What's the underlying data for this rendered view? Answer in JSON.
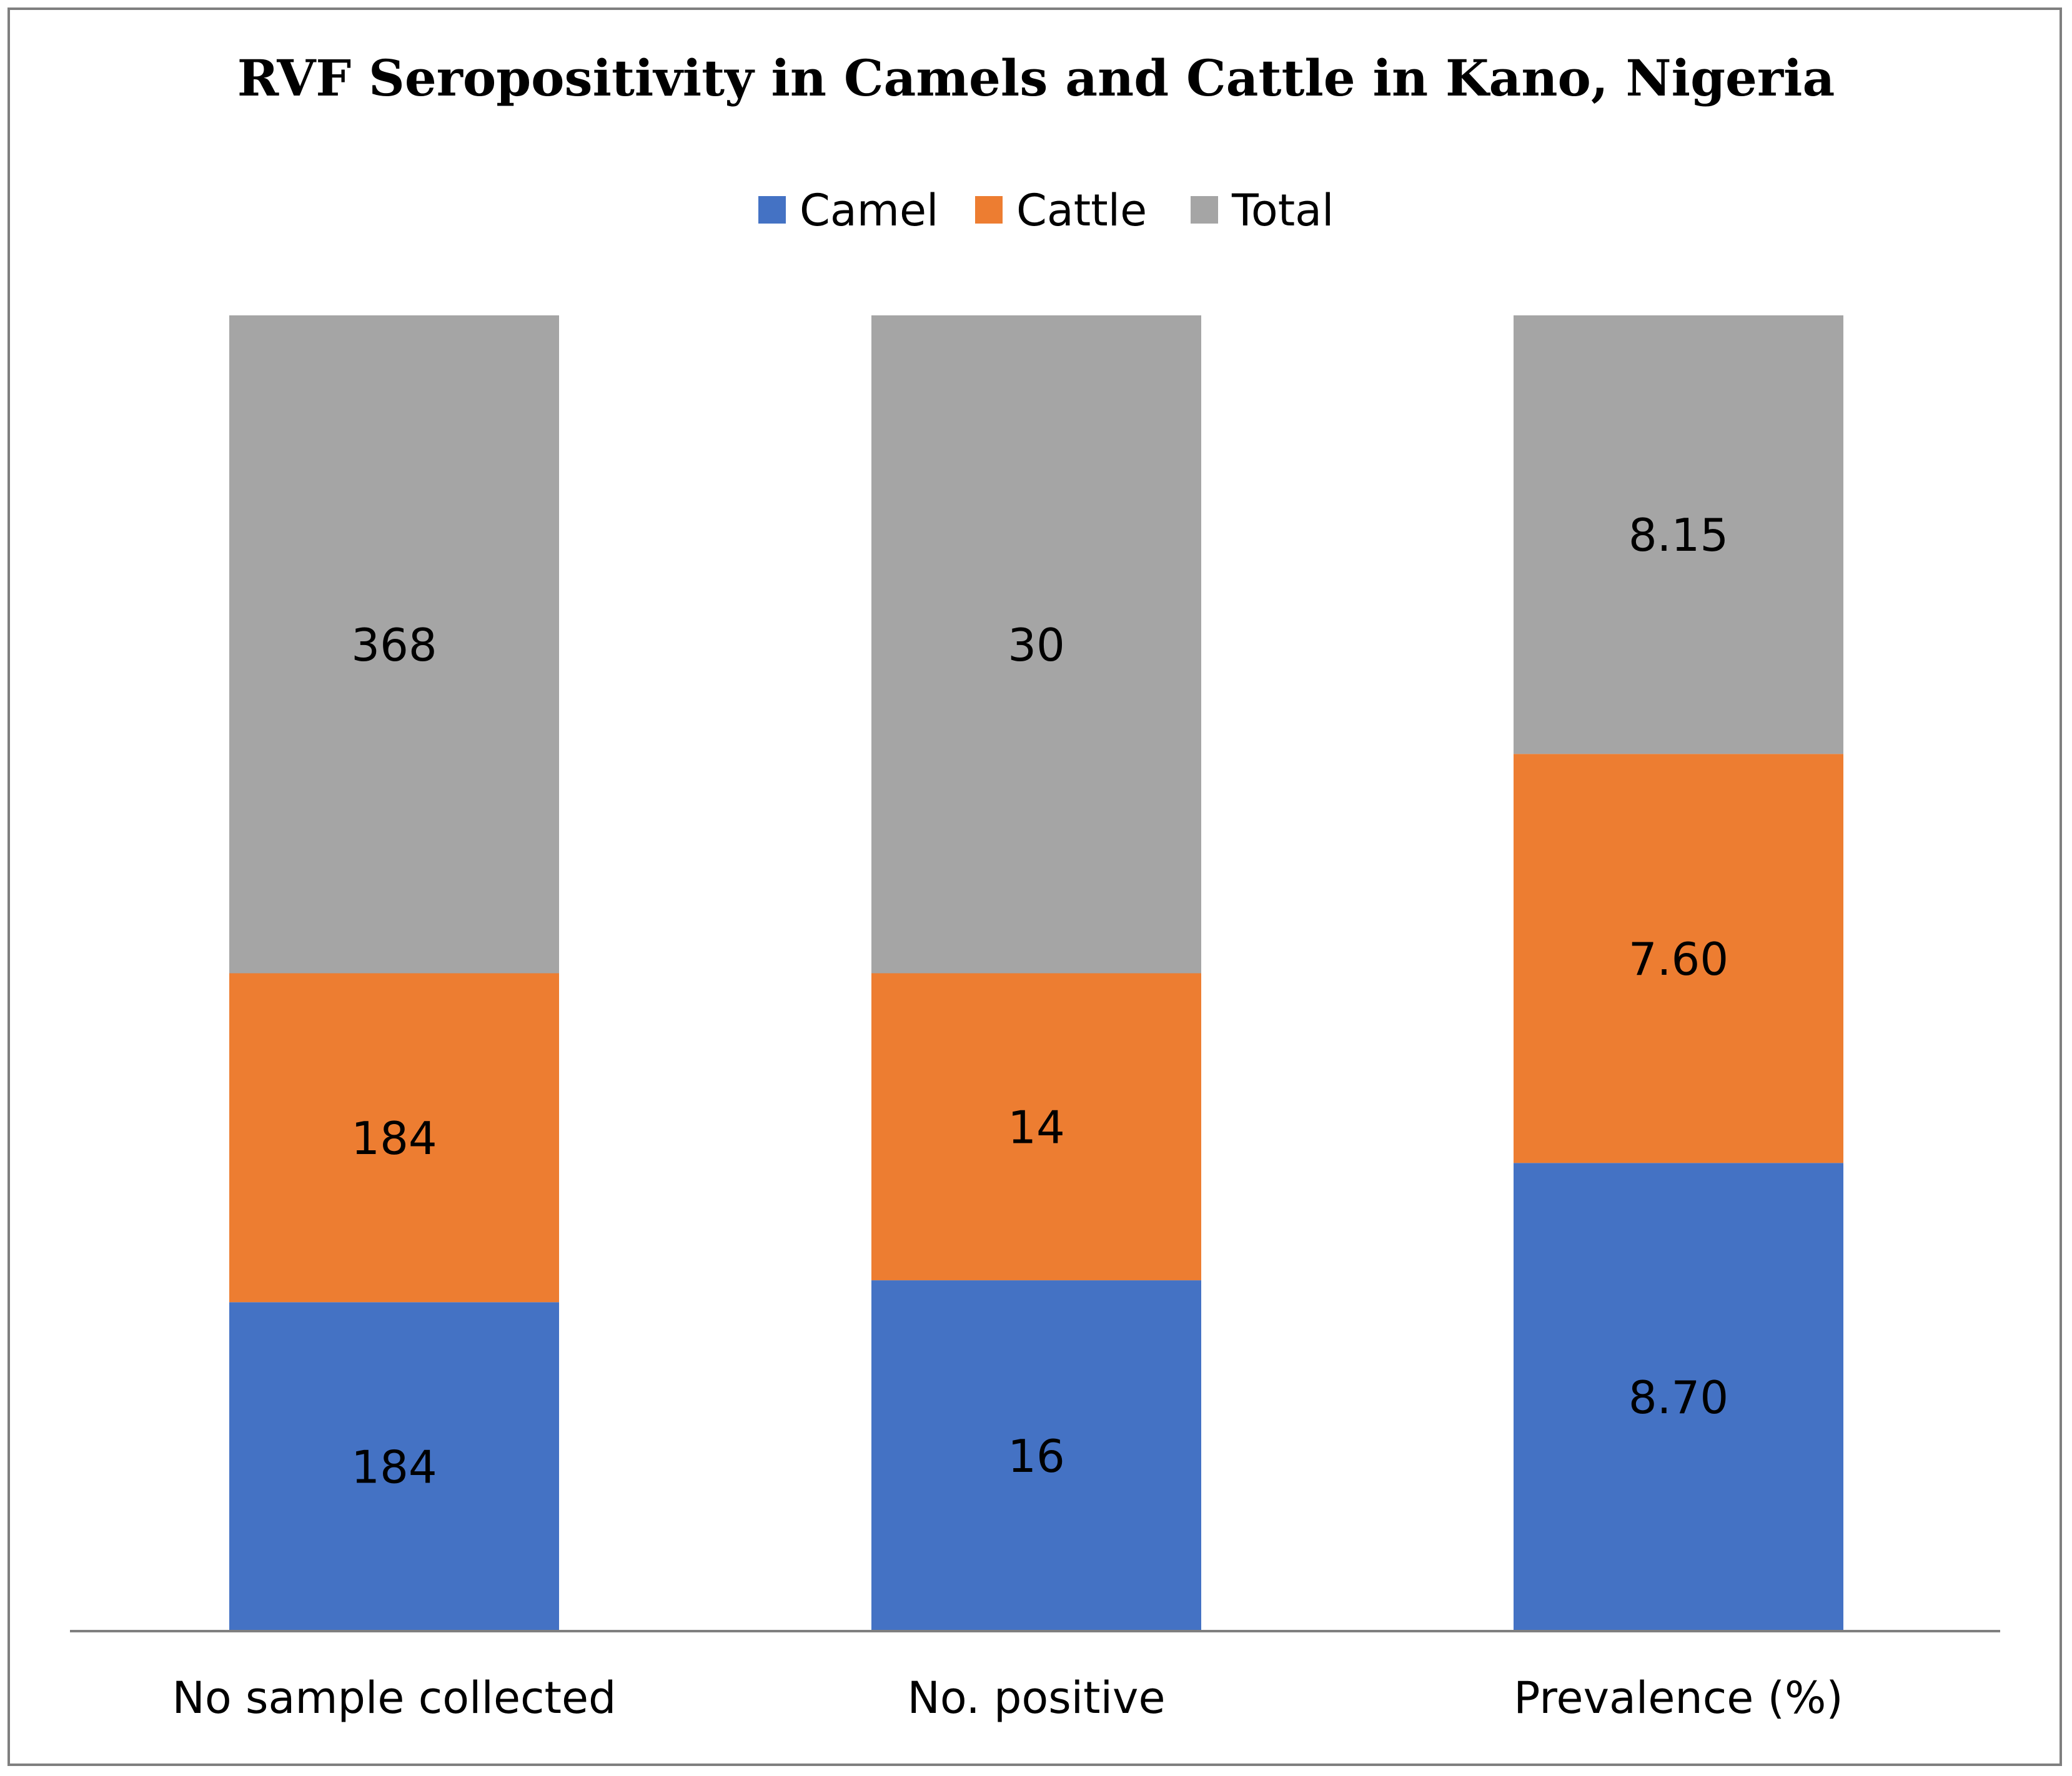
{
  "chart_data": {
    "type": "bar",
    "stacked": true,
    "title": "RVF Seropositivity in Camels and Cattle in Kano, Nigeria",
    "xlabel": "",
    "ylabel": "",
    "categories": [
      "No sample collected",
      "No. positive",
      "Prevalence (%)"
    ],
    "series": [
      {
        "name": "Camel",
        "color": "#4472C4",
        "values": [
          184,
          16,
          8.7
        ],
        "labels": [
          "184",
          "16",
          "8.70"
        ]
      },
      {
        "name": "Cattle",
        "color": "#ED7D31",
        "values": [
          184,
          14,
          7.6
        ],
        "labels": [
          "184",
          "14",
          "7.60"
        ]
      },
      {
        "name": "Total",
        "color": "#A5A5A5",
        "values": [
          368,
          30,
          8.15
        ],
        "labels": [
          "368",
          "30",
          "8.15"
        ]
      }
    ],
    "normalization": "percent-of-column",
    "legend_position": "top",
    "grid": false,
    "y_axis_visible": false
  }
}
